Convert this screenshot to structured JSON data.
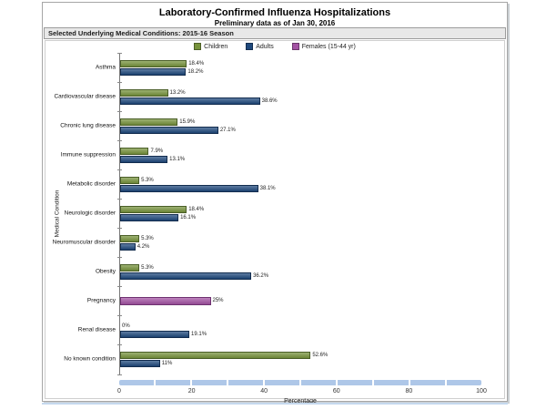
{
  "chart_data": {
    "type": "bar",
    "orientation": "horizontal",
    "title": "Laboratory-Confirmed Influenza Hospitalizations",
    "subtitle": "Preliminary data as of Jan 30, 2016",
    "section_label": "Selected Underlying Medical Conditions: 2015-16 Season",
    "xlabel": "Percentage",
    "ylabel": "Medical Condition",
    "xlim": [
      0,
      100
    ],
    "x_ticks": [
      0,
      20,
      40,
      60,
      80,
      100
    ],
    "grid": false,
    "legend_position": "top-center",
    "legend": [
      {
        "name": "Children",
        "color": "#77933C",
        "border": "#4a5e27"
      },
      {
        "name": "Adults",
        "color": "#1F497D",
        "border": "#122c4e"
      },
      {
        "name": "Females (15-44 yr)",
        "color": "#A352A3",
        "border": "#6e3070"
      }
    ],
    "rows": [
      {
        "category": "Asthma",
        "bars": [
          {
            "series": "Children",
            "value": 18.4,
            "label": "18.4%"
          },
          {
            "series": "Adults",
            "value": 18.2,
            "label": "18.2%"
          }
        ]
      },
      {
        "category": "Cardiovascular disease",
        "bars": [
          {
            "series": "Children",
            "value": 13.2,
            "label": "13.2%"
          },
          {
            "series": "Adults",
            "value": 38.6,
            "label": "38.6%"
          }
        ]
      },
      {
        "category": "Chronic lung disease",
        "bars": [
          {
            "series": "Children",
            "value": 15.9,
            "label": "15.9%"
          },
          {
            "series": "Adults",
            "value": 27.1,
            "label": "27.1%"
          }
        ]
      },
      {
        "category": "Immune suppression",
        "bars": [
          {
            "series": "Children",
            "value": 7.9,
            "label": "7.9%"
          },
          {
            "series": "Adults",
            "value": 13.1,
            "label": "13.1%"
          }
        ]
      },
      {
        "category": "Metabolic disorder",
        "bars": [
          {
            "series": "Children",
            "value": 5.3,
            "label": "5.3%"
          },
          {
            "series": "Adults",
            "value": 38.1,
            "label": "38.1%"
          }
        ]
      },
      {
        "category": "Neurologic disorder",
        "bars": [
          {
            "series": "Children",
            "value": 18.4,
            "label": "18.4%"
          },
          {
            "series": "Adults",
            "value": 16.1,
            "label": "16.1%"
          }
        ]
      },
      {
        "category": "Neuromuscular disorder",
        "bars": [
          {
            "series": "Children",
            "value": 5.3,
            "label": "5.3%"
          },
          {
            "series": "Adults",
            "value": 4.2,
            "label": "4.2%"
          }
        ]
      },
      {
        "category": "Obesity",
        "bars": [
          {
            "series": "Children",
            "value": 5.3,
            "label": "5.3%"
          },
          {
            "series": "Adults",
            "value": 36.2,
            "label": "36.2%"
          }
        ]
      },
      {
        "category": "Pregnancy",
        "bars": [
          {
            "series": "Females (15-44 yr)",
            "value": 25,
            "label": "25%"
          }
        ]
      },
      {
        "category": "Renal disease",
        "bars": [
          {
            "series": "Children",
            "value": 0,
            "label": "0%"
          },
          {
            "series": "Adults",
            "value": 19.1,
            "label": "19.1%"
          }
        ]
      },
      {
        "category": "No known condition",
        "bars": [
          {
            "series": "Children",
            "value": 52.6,
            "label": "52.6%"
          },
          {
            "series": "Adults",
            "value": 11,
            "label": "11%"
          }
        ]
      }
    ],
    "scrollbar_color": "#AEC7E8"
  }
}
